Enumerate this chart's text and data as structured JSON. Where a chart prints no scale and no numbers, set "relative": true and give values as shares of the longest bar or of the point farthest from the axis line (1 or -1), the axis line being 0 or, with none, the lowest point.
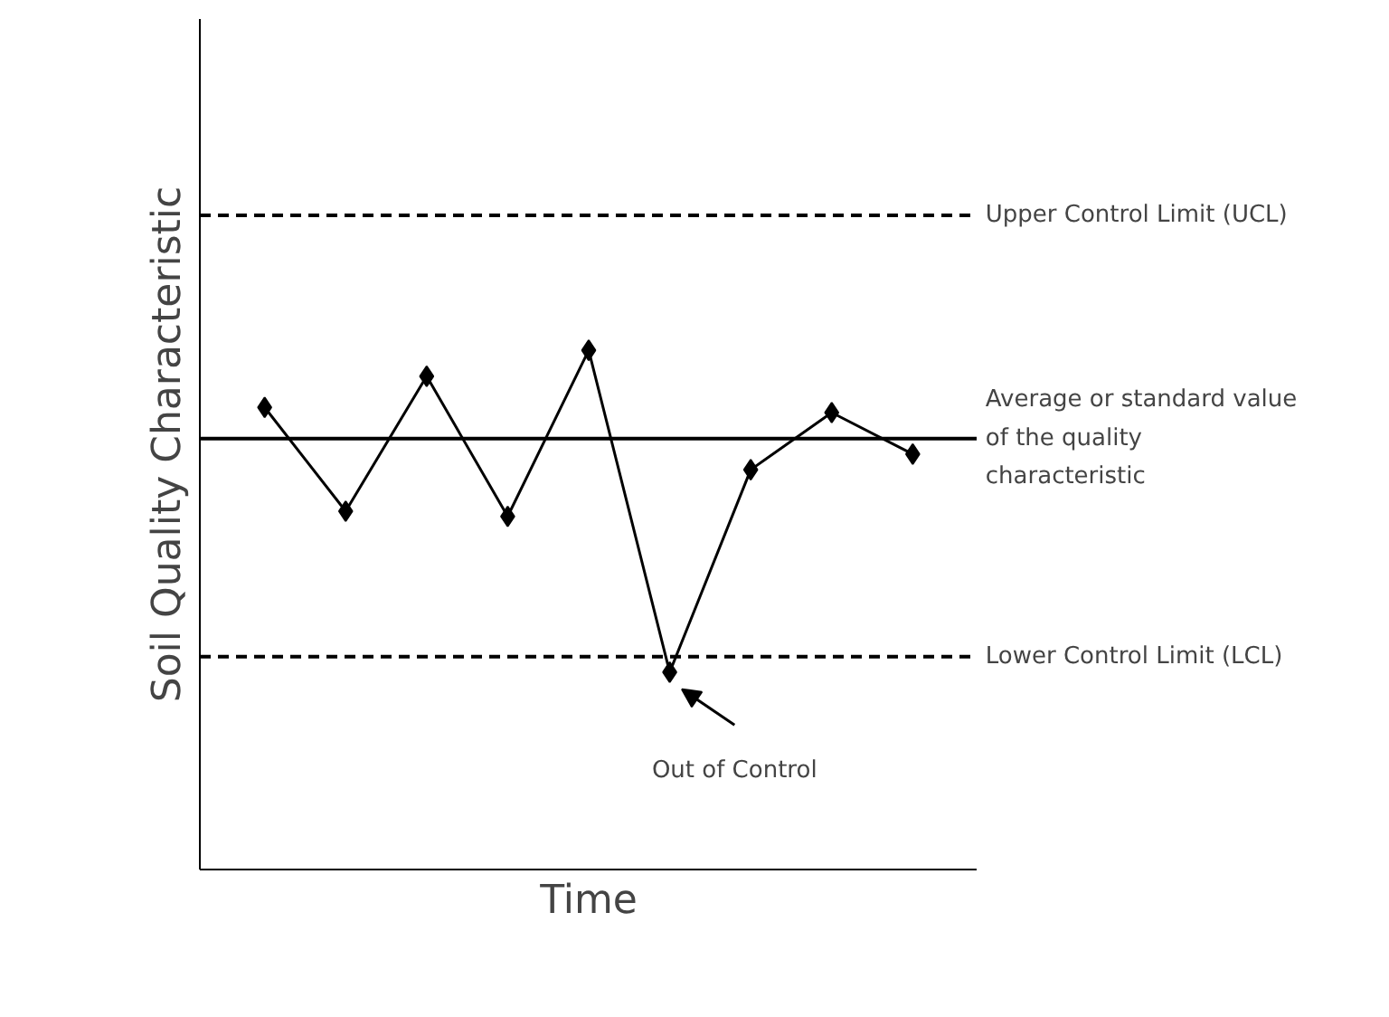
{
  "chart_data": {
    "type": "line",
    "relative": true,
    "xlabel": "Time",
    "ylabel": "Soil Quality Characteristic",
    "categories": [
      null,
      null,
      null,
      null,
      null,
      null,
      null,
      null,
      null
    ],
    "series": [
      {
        "color": "#000000",
        "values": [
          0.89,
          0.69,
          0.95,
          0.68,
          1,
          0.38,
          0.77,
          0.88,
          0.8
        ]
      }
    ],
    "marker": "diamond",
    "line_style": "solid",
    "ref_lines": [
      {
        "axis": "y",
        "value": 1.26,
        "label": "Upper Control Limit (UCL)",
        "line_style": "dashed",
        "color": "#000000"
      },
      {
        "axis": "y",
        "value": 0.83,
        "label": "Average or standard value of the quality characteristic",
        "line_style": "solid",
        "color": "#000000"
      },
      {
        "axis": "y",
        "value": 0.41,
        "label": "Lower Control Limit (LCL)",
        "line_style": "dashed",
        "color": "#000000"
      }
    ],
    "annotations": [
      "Out of Control"
    ]
  }
}
